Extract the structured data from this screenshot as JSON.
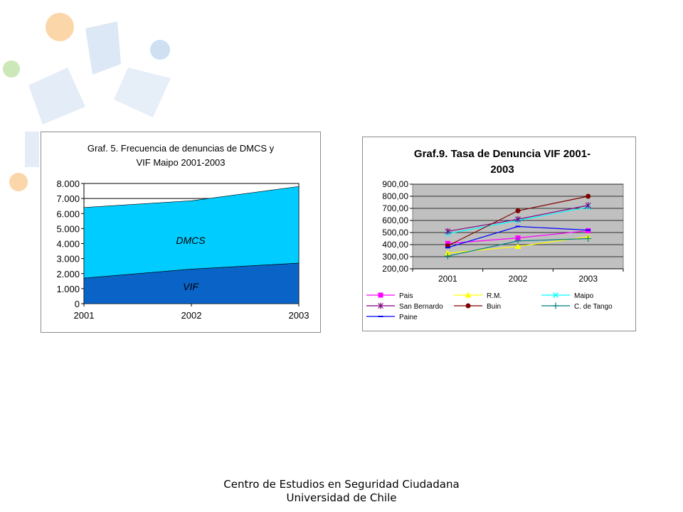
{
  "decor": {
    "circles": [
      {
        "color": "#fbd6a8"
      },
      {
        "color": "#cde8b8"
      },
      {
        "color": "#cfe0f2"
      },
      {
        "color": "#fbd6a8"
      }
    ]
  },
  "footer": {
    "line1": "Centro de Estudios en Seguridad Ciudadana",
    "line2": "Universidad de Chile"
  },
  "chart_data": [
    {
      "type": "area",
      "stacked": true,
      "title": "Graf. 5.  Frecuencia de denuncias de DMCS y VIF Maipo 2001-2003",
      "title_lines": [
        "Graf. 5.  Frecuencia de denuncias de DMCS y",
        "VIF Maipo 2001-2003"
      ],
      "categories": [
        "2001",
        "2002",
        "2003"
      ],
      "series": [
        {
          "name": "VIF",
          "values": [
            1700,
            2300,
            2700
          ],
          "color": "#0a64c8"
        },
        {
          "name": "DMCS",
          "values": [
            4700,
            4550,
            5100
          ],
          "color": "#00ccff"
        }
      ],
      "ylim": [
        0,
        8000
      ],
      "yticks": [
        0,
        1000,
        2000,
        3000,
        4000,
        5000,
        6000,
        7000,
        8000
      ],
      "ytick_labels": [
        "0",
        "1.000",
        "2.000",
        "3.000",
        "4.000",
        "5.000",
        "6.000",
        "7.000",
        "8.000"
      ],
      "grid": true,
      "legend": "inline labels"
    },
    {
      "type": "line",
      "title": "Graf.9. Tasa de Denuncia VIF 2001-2003",
      "title_lines": [
        "Graf.9. Tasa de Denuncia VIF 2001-",
        "2003"
      ],
      "categories": [
        "2001",
        "2002",
        "2003"
      ],
      "series": [
        {
          "name": "Pais",
          "values": [
            410,
            455,
            515
          ],
          "color": "#ff00ff",
          "marker": "square"
        },
        {
          "name": "R.M.",
          "values": [
            330,
            385,
            465
          ],
          "color": "#ffff00",
          "marker": "triangle"
        },
        {
          "name": "Maipo",
          "values": [
            490,
            600,
            710
          ],
          "color": "#00ffff",
          "marker": "x"
        },
        {
          "name": "San Bernardo",
          "values": [
            510,
            610,
            725
          ],
          "color": "#800080",
          "marker": "star"
        },
        {
          "name": "Buin",
          "values": [
            390,
            680,
            800
          ],
          "color": "#800000",
          "marker": "circle"
        },
        {
          "name": "C. de Tango",
          "values": [
            305,
            430,
            450
          ],
          "color": "#008080",
          "marker": "plus"
        },
        {
          "name": "Paine",
          "values": [
            375,
            550,
            520
          ],
          "color": "#0000ff",
          "marker": "dash"
        }
      ],
      "ylim": [
        200,
        900
      ],
      "yticks": [
        200,
        300,
        400,
        500,
        600,
        700,
        800,
        900
      ],
      "ytick_labels": [
        "200,00",
        "300,00",
        "400,00",
        "500,00",
        "600,00",
        "700,00",
        "800,00",
        "900,00"
      ],
      "grid": true,
      "plot_background": "#c0c0c0",
      "legend": "bottom"
    }
  ]
}
